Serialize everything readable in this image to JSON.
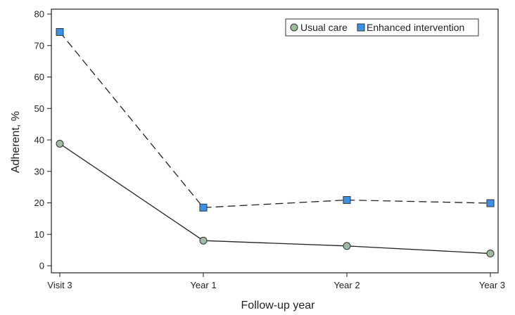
{
  "chart_data": {
    "type": "line",
    "title": "",
    "xlabel": "Follow-up year",
    "ylabel": "Adherent, %",
    "categories": [
      "Visit 3",
      "Year 1",
      "Year 2",
      "Year 3"
    ],
    "ylim": [
      0,
      80
    ],
    "yticks": [
      0,
      10,
      20,
      30,
      40,
      50,
      60,
      70,
      80
    ],
    "grid": false,
    "legend_position": "top-right",
    "series": [
      {
        "name": "Usual care",
        "values": [
          38.8,
          8.0,
          6.3,
          3.9
        ],
        "marker": "circle",
        "line_style": "solid",
        "marker_color": "#9dbb9f",
        "line_color": "#222222"
      },
      {
        "name": "Enhanced intervention",
        "values": [
          74.3,
          18.5,
          20.9,
          19.9
        ],
        "marker": "square",
        "line_style": "dashed",
        "marker_color": "#3a92e6",
        "line_color": "#222222"
      }
    ]
  }
}
